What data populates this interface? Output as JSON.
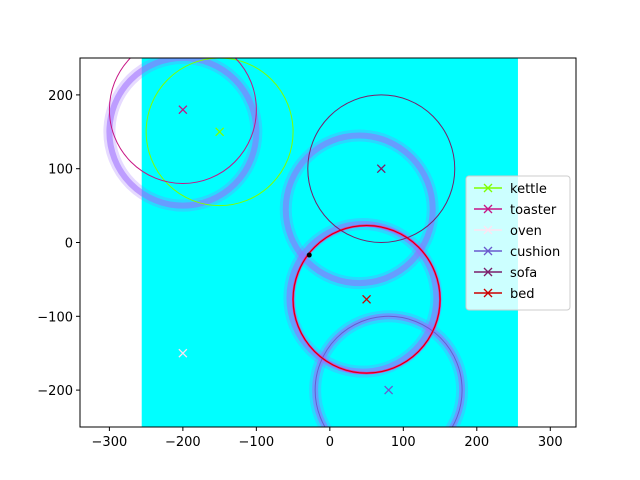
{
  "chart_data": {
    "type": "scatter",
    "title": "",
    "xlabel": "",
    "ylabel": "",
    "xlim": [
      -340,
      335
    ],
    "ylim": [
      -250,
      250
    ],
    "xticks": [
      -300,
      -200,
      -100,
      0,
      100,
      200,
      300
    ],
    "yticks": [
      -200,
      -100,
      0,
      100,
      200
    ],
    "grid": false,
    "legend_position": "center-right",
    "background_field": {
      "color": "#00ffff",
      "x_range": [
        -256,
        256
      ],
      "y_range": [
        -250,
        250
      ],
      "ring_color": "#9b6bff",
      "rings": [
        {
          "cx": -200,
          "cy": 150,
          "r": 100
        },
        {
          "cx": 40,
          "cy": 45,
          "r": 100
        },
        {
          "cx": 45,
          "cy": -75,
          "r": 100
        },
        {
          "cx": 80,
          "cy": -200,
          "r": 100
        }
      ]
    },
    "series": [
      {
        "name": "kettle",
        "color": "#7fff00",
        "x": -150,
        "y": 150,
        "radius": 100
      },
      {
        "name": "toaster",
        "color": "#c71585",
        "x": -200,
        "y": 180,
        "radius": 100
      },
      {
        "name": "oven",
        "color": "#ffe4f1",
        "x": -200,
        "y": -150,
        "radius": null
      },
      {
        "name": "cushion",
        "color": "#6a5acd",
        "x": 80,
        "y": -200,
        "radius": 100
      },
      {
        "name": "sofa",
        "color": "#7b1f6a",
        "x": 70,
        "y": 100,
        "radius": 100
      },
      {
        "name": "bed",
        "color": "#cc0000",
        "x": 50,
        "y": -77,
        "radius": 100
      }
    ],
    "extra_circle": {
      "color": "#ff1493",
      "x": 50,
      "y": -77,
      "radius": 100
    },
    "point": {
      "x": -28,
      "y": -17,
      "color": "#000000"
    }
  }
}
